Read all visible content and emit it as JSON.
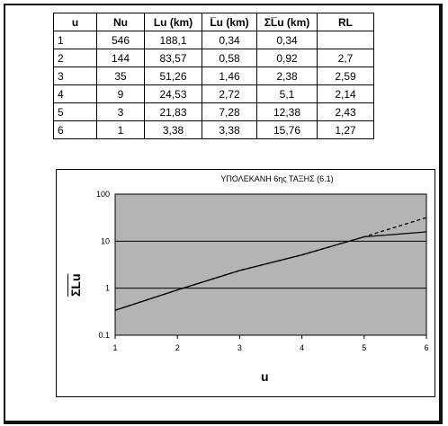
{
  "table": {
    "headers": [
      "u",
      "Nu",
      "Lu (km)",
      "L̅u (km)",
      "ΣL̅u (km)",
      "RL"
    ],
    "rows": [
      [
        "1",
        "546",
        "188,1",
        "0,34",
        "0,34",
        ""
      ],
      [
        "2",
        "144",
        "83,57",
        "0,58",
        "0,92",
        "2,7"
      ],
      [
        "3",
        "35",
        "51,26",
        "1,46",
        "2,38",
        "2,59"
      ],
      [
        "4",
        "9",
        "24,53",
        "2,72",
        "5,1",
        "2,14"
      ],
      [
        "5",
        "3",
        "21,83",
        "7,28",
        "12,38",
        "2,43"
      ],
      [
        "6",
        "1",
        "3,38",
        "3,38",
        "15,76",
        "1,27"
      ]
    ]
  },
  "chart_data": {
    "type": "line",
    "title": "ΥΠΟΛΕΚΑΝΗ 6ης ΤΑΞΗΣ (6.1)",
    "xlabel": "u",
    "ylabel": "ΣLu",
    "x_ticks": [
      "1",
      "2",
      "3",
      "4",
      "5",
      "6"
    ],
    "y_ticks": [
      "0.1",
      "1",
      "10",
      "100"
    ],
    "xlim": [
      1,
      6
    ],
    "ylim": [
      0.1,
      100
    ],
    "y_scale": "log",
    "grid": "horizontal",
    "x": [
      1,
      2,
      3,
      4,
      5,
      6
    ],
    "series": [
      {
        "values": [
          0.34,
          0.92,
          2.38,
          5.1,
          12.38,
          15.76
        ],
        "style": "solid"
      },
      {
        "values": [
          0.34,
          0.92,
          2.38,
          5.1,
          12.38,
          31.7
        ],
        "style": "dashed"
      }
    ],
    "colors": {
      "plot_bg": "#b4b4b4",
      "line": "#000000"
    }
  }
}
